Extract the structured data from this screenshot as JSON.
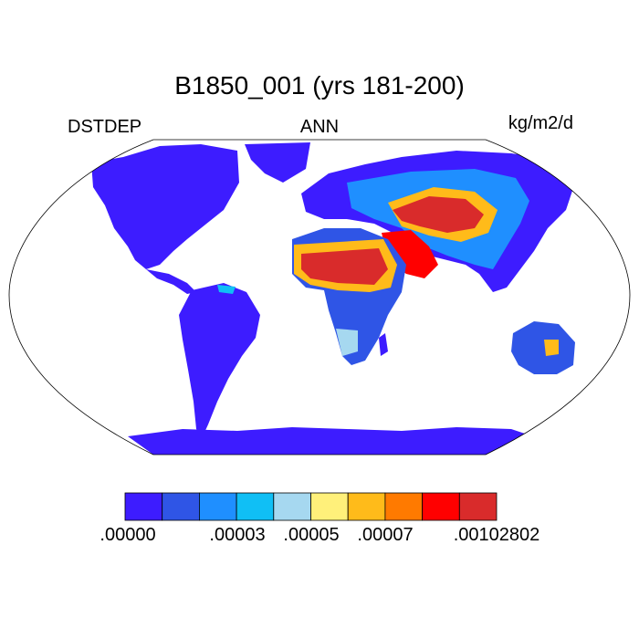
{
  "title": "B1850_001 (yrs 181-200)",
  "left_string": "DSTDEP",
  "center_string": "ANN",
  "right_string": "kg/m2/d",
  "colors": {
    "ocean": "#ffffff",
    "outline": "#000000",
    "levels": [
      "#3d1cff",
      "#2f55e6",
      "#1f8fff",
      "#10bff5",
      "#a6d8f0",
      "#fff07a",
      "#ffbb1a",
      "#ff7a00",
      "#ff0000",
      "#d92b2b"
    ]
  },
  "colorbar": {
    "labels": [
      ".00000",
      ".00003",
      ".00005",
      ".00007",
      ".00102802"
    ]
  }
}
